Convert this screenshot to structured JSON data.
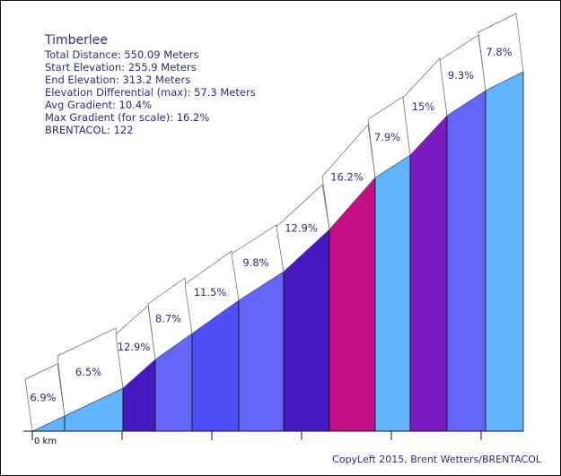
{
  "info": {
    "title": "Timberlee",
    "lines": [
      "Total Distance: 550.09 Meters",
      "Start Elevation: 255.9 Meters",
      "End Elevation: 313.2 Meters",
      "Elevation Differential (max): 57.3 Meters",
      "Avg Gradient: 10.4%",
      "Max Gradient (for scale): 16.2%",
      "BRENTACOL: 122"
    ]
  },
  "credit": "CopyLeft 2015, Brent Wetters/BRENTACOL",
  "chart_data": {
    "type": "area",
    "title": "Timberlee",
    "xlabel": "",
    "ylabel": "",
    "x_tick_labels": [
      "0 km"
    ],
    "segments": [
      {
        "label": "6.9%",
        "gradient": 6.9,
        "color": "#61b5ff"
      },
      {
        "label": "6.5%",
        "gradient": 6.5,
        "color": "#61b5ff"
      },
      {
        "label": "12.9%",
        "gradient": 12.9,
        "color": "#4618c2"
      },
      {
        "label": "8.7%",
        "gradient": 8.7,
        "color": "#6565f7"
      },
      {
        "label": "11.5%",
        "gradient": 11.5,
        "color": "#5050fa"
      },
      {
        "label": "9.8%",
        "gradient": 9.8,
        "color": "#6565f7"
      },
      {
        "label": "12.9%",
        "gradient": 12.9,
        "color": "#4618c2"
      },
      {
        "label": "16.2%",
        "gradient": 16.2,
        "color": "#c40f87"
      },
      {
        "label": "7.9%",
        "gradient": 7.9,
        "color": "#61b5ff"
      },
      {
        "label": "15%",
        "gradient": 15,
        "color": "#7c1ac2"
      },
      {
        "label": "9.3%",
        "gradient": 9.3,
        "color": "#6565f7"
      },
      {
        "label": "7.8%",
        "gradient": 7.8,
        "color": "#61b5ff"
      }
    ]
  }
}
